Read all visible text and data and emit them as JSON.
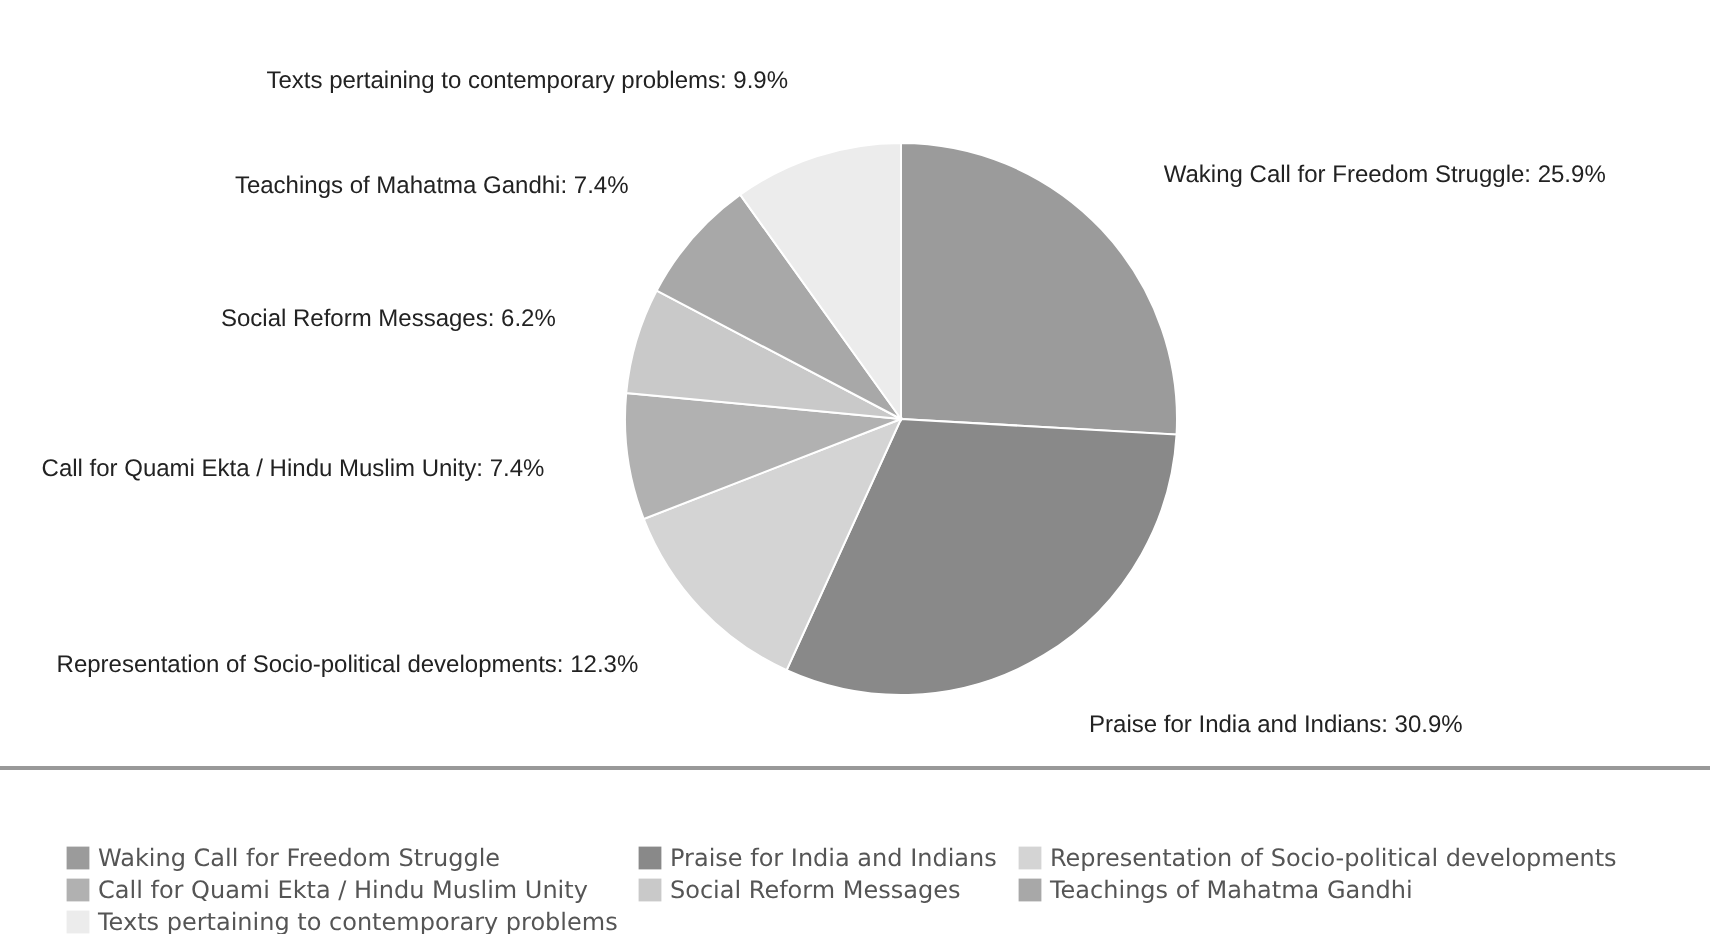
{
  "chart_data": {
    "type": "pie",
    "categories": [
      "Waking Call for Freedom Struggle",
      "Praise for India and Indians",
      "Representation of Socio-political developments",
      "Call for Quami Ekta / Hindu Muslim Unity",
      "Social Reform Messages",
      "Teachings of Mahatma Gandhi",
      "Texts pertaining to contemporary problems"
    ],
    "values": [
      25.9,
      30.9,
      12.3,
      7.4,
      6.2,
      7.4,
      9.9
    ],
    "colors": [
      "#9b9b9b",
      "#898989",
      "#d4d4d4",
      "#b1b1b1",
      "#c9c9c9",
      "#a8a8a8",
      "#ececec"
    ],
    "value_labels": [
      "Waking Call for Freedom Struggle: 25.9%",
      "Praise for India and Indians: 30.9%",
      "Representation of Socio-political developments: 12.3%",
      "Call for Quami Ekta / Hindu Muslim Unity: 7.4%",
      "Social Reform Messages: 6.2%",
      "Teachings of Mahatma Gandhi: 7.4%",
      "Texts pertaining to contemporary problems: 9.9%"
    ],
    "legend": "bottom"
  }
}
